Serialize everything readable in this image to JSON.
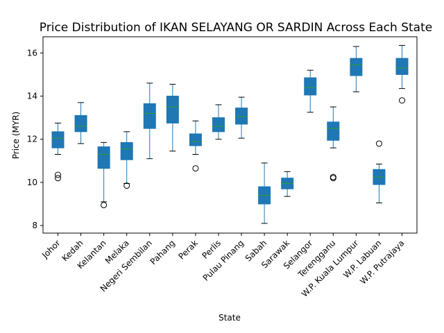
{
  "chart_data": {
    "type": "box",
    "title": "Price Distribution of IKAN SELAYANG OR SARDIN Across Each State",
    "xlabel": "State",
    "ylabel": "Price (MYR)",
    "ylim": [
      7.65,
      16.75
    ],
    "y_ticks": [
      8,
      10,
      12,
      14,
      16
    ],
    "grid": false,
    "legend": "none",
    "colors": {
      "box_fill": "#1f77b4",
      "median": "#2ca02c",
      "whisker": "#1f77b4",
      "outlier": "#000000"
    },
    "categories": [
      "Johor",
      "Kedah",
      "Kelantan",
      "Melaka",
      "Negeri Sembilan",
      "Pahang",
      "Perak",
      "Perlis",
      "Pulau Pinang",
      "Sabah",
      "Sarawak",
      "Selangor",
      "Terengganu",
      "W.P. Kuala Lumpur",
      "W.P. Labuan",
      "W.P. Putrajaya"
    ],
    "boxes": [
      {
        "whisker_low": 11.3,
        "q1": 11.6,
        "median": 12.05,
        "q3": 12.35,
        "whisker_high": 12.75,
        "outliers": [
          10.35,
          10.2
        ]
      },
      {
        "whisker_low": 11.8,
        "q1": 12.35,
        "median": 12.6,
        "q3": 13.1,
        "whisker_high": 13.7,
        "outliers": []
      },
      {
        "whisker_low": 9.1,
        "q1": 10.65,
        "median": 11.3,
        "q3": 11.65,
        "whisker_high": 11.85,
        "outliers": [
          8.95
        ]
      },
      {
        "whisker_low": 9.95,
        "q1": 11.05,
        "median": 11.55,
        "q3": 11.85,
        "whisker_high": 12.35,
        "outliers": [
          9.85
        ]
      },
      {
        "whisker_low": 11.1,
        "q1": 12.5,
        "median": 13.2,
        "q3": 13.65,
        "whisker_high": 14.6,
        "outliers": []
      },
      {
        "whisker_low": 11.45,
        "q1": 12.75,
        "median": 13.5,
        "q3": 14.0,
        "whisker_high": 14.55,
        "outliers": []
      },
      {
        "whisker_low": 11.3,
        "q1": 11.7,
        "median": 11.9,
        "q3": 12.25,
        "whisker_high": 12.85,
        "outliers": [
          10.65
        ]
      },
      {
        "whisker_low": 12.0,
        "q1": 12.35,
        "median": 12.6,
        "q3": 13.0,
        "whisker_high": 13.6,
        "outliers": []
      },
      {
        "whisker_low": 12.05,
        "q1": 12.7,
        "median": 13.05,
        "q3": 13.45,
        "whisker_high": 13.95,
        "outliers": []
      },
      {
        "whisker_low": 8.1,
        "q1": 9.0,
        "median": 9.4,
        "q3": 9.8,
        "whisker_high": 10.9,
        "outliers": []
      },
      {
        "whisker_low": 9.35,
        "q1": 9.7,
        "median": 9.95,
        "q3": 10.2,
        "whisker_high": 10.5,
        "outliers": []
      },
      {
        "whisker_low": 13.25,
        "q1": 14.05,
        "median": 14.4,
        "q3": 14.85,
        "whisker_high": 15.2,
        "outliers": []
      },
      {
        "whisker_low": 11.6,
        "q1": 11.95,
        "median": 12.5,
        "q3": 12.8,
        "whisker_high": 13.5,
        "outliers": [
          10.25,
          10.2
        ]
      },
      {
        "whisker_low": 14.2,
        "q1": 14.95,
        "median": 15.45,
        "q3": 15.75,
        "whisker_high": 16.3,
        "outliers": []
      },
      {
        "whisker_low": 9.05,
        "q1": 9.9,
        "median": 10.25,
        "q3": 10.6,
        "whisker_high": 10.85,
        "outliers": [
          11.8
        ]
      },
      {
        "whisker_low": 14.35,
        "q1": 15.0,
        "median": 15.3,
        "q3": 15.75,
        "whisker_high": 16.35,
        "outliers": [
          13.8
        ]
      }
    ]
  }
}
